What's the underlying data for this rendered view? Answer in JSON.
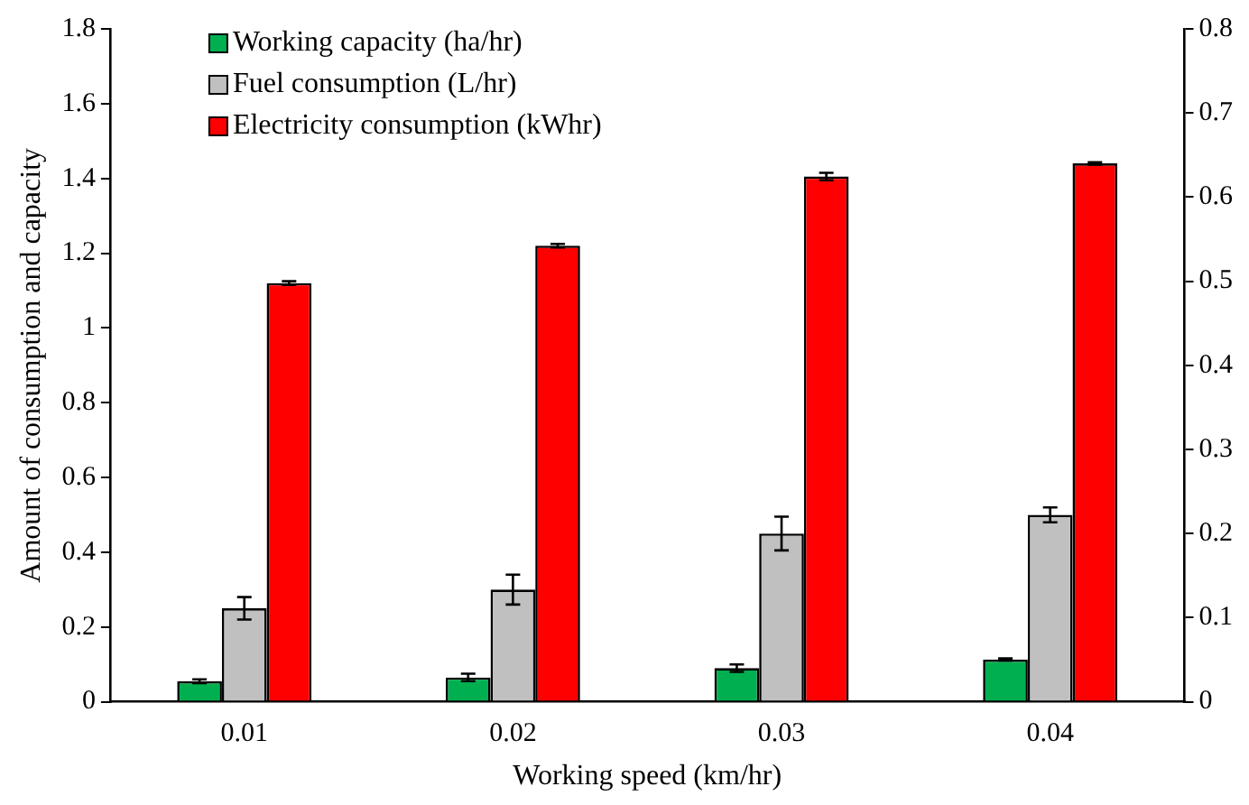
{
  "chart_data": {
    "type": "bar",
    "xlabel": "Working speed (km/hr)",
    "ylabel": "Amount of consumption and capacity",
    "categories": [
      "0.01",
      "0.02",
      "0.03",
      "0.04"
    ],
    "series": [
      {
        "name": "Working capacity (ha/hr)",
        "color": "#00b050",
        "values": [
          0.055,
          0.065,
          0.09,
          0.113
        ],
        "errors": [
          0.005,
          0.01,
          0.01,
          0.003
        ]
      },
      {
        "name": "Fuel consumption (L/hr)",
        "color": "#c0c0c0",
        "values": [
          0.25,
          0.3,
          0.45,
          0.5
        ],
        "errors": [
          0.03,
          0.04,
          0.045,
          0.02
        ]
      },
      {
        "name": "Electricity consumption (kWhr)",
        "color": "#ff0000",
        "values": [
          1.12,
          1.22,
          1.405,
          1.44
        ],
        "errors": [
          0.005,
          0.005,
          0.01,
          0.003
        ]
      }
    ],
    "ylim": [
      0,
      1.8
    ],
    "yticks": [
      0,
      0.2,
      0.4,
      0.6,
      0.8,
      1,
      1.2,
      1.4,
      1.6,
      1.8
    ],
    "y2lim": [
      0,
      0.8
    ],
    "y2ticks": [
      0,
      0.1,
      0.2,
      0.3,
      0.4,
      0.5,
      0.6,
      0.7,
      0.8
    ],
    "grid": false,
    "legend": "top left"
  }
}
